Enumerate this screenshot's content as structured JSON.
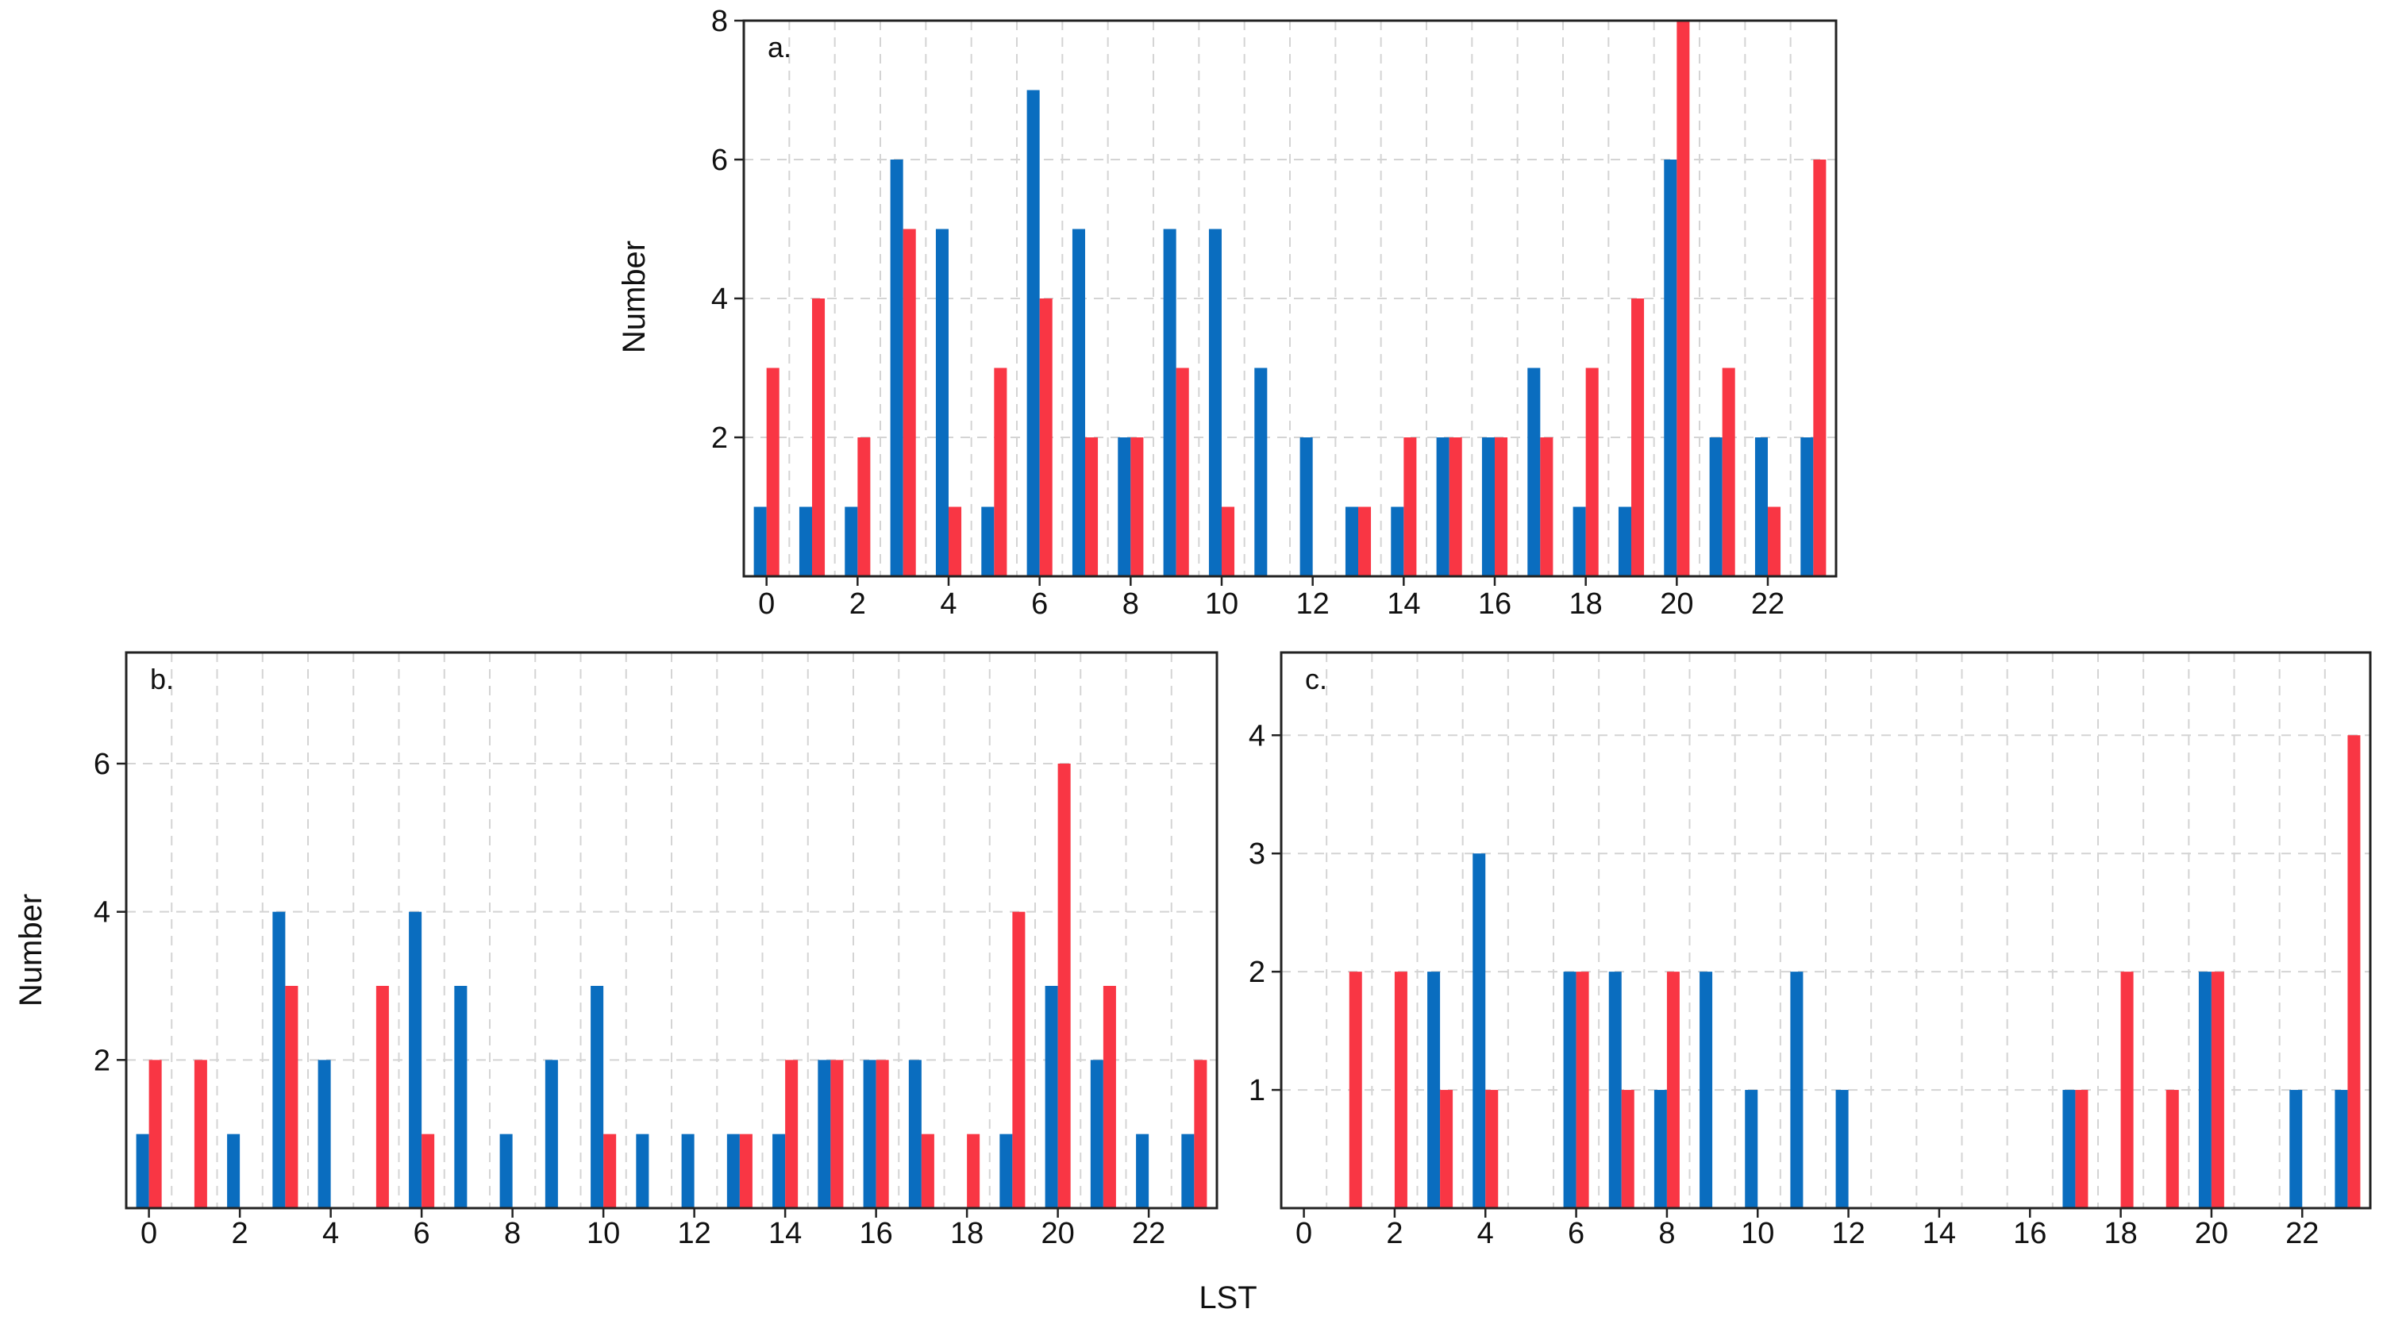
{
  "figure": {
    "shared_xlabel": "LST",
    "series_colors": {
      "blue": "#0a6dbf",
      "red": "#f93644"
    }
  },
  "chart_data": [
    {
      "type": "bar",
      "panel": "a.",
      "xlabel": "",
      "ylabel": "Number",
      "x": [
        0,
        1,
        2,
        3,
        4,
        5,
        6,
        7,
        8,
        9,
        10,
        11,
        12,
        13,
        14,
        15,
        16,
        17,
        18,
        19,
        20,
        21,
        22,
        23
      ],
      "x_ticks": [
        0,
        2,
        4,
        6,
        8,
        10,
        12,
        14,
        16,
        18,
        20,
        22
      ],
      "y_ticks": [
        2,
        4,
        6,
        8
      ],
      "ylim": [
        0,
        8
      ],
      "grid": true,
      "series": [
        {
          "name": "blue",
          "values": [
            1,
            1,
            1,
            6,
            5,
            1,
            7,
            5,
            2,
            5,
            5,
            3,
            2,
            1,
            1,
            2,
            2,
            3,
            1,
            1,
            6,
            2,
            2,
            2
          ]
        },
        {
          "name": "red",
          "values": [
            3,
            4,
            2,
            5,
            1,
            3,
            4,
            2,
            2,
            3,
            1,
            0,
            0,
            1,
            2,
            2,
            2,
            2,
            3,
            4,
            8,
            3,
            1,
            6
          ]
        }
      ]
    },
    {
      "type": "bar",
      "panel": "b.",
      "xlabel": "LST",
      "ylabel": "Number",
      "x": [
        0,
        1,
        2,
        3,
        4,
        5,
        6,
        7,
        8,
        9,
        10,
        11,
        12,
        13,
        14,
        15,
        16,
        17,
        18,
        19,
        20,
        21,
        22,
        23
      ],
      "x_ticks": [
        0,
        2,
        4,
        6,
        8,
        10,
        12,
        14,
        16,
        18,
        20,
        22
      ],
      "y_ticks": [
        2,
        4,
        6
      ],
      "ylim": [
        0,
        7.5
      ],
      "grid": true,
      "series": [
        {
          "name": "blue",
          "values": [
            1,
            0,
            1,
            4,
            2,
            0,
            4,
            3,
            1,
            2,
            3,
            1,
            1,
            1,
            1,
            2,
            2,
            2,
            0,
            1,
            3,
            2,
            1,
            1
          ]
        },
        {
          "name": "red",
          "values": [
            2,
            2,
            0,
            3,
            0,
            3,
            1,
            0,
            0,
            0,
            1,
            0,
            0,
            1,
            2,
            2,
            2,
            1,
            1,
            4,
            6,
            3,
            0,
            2
          ]
        }
      ]
    },
    {
      "type": "bar",
      "panel": "c.",
      "xlabel": "LST",
      "ylabel": "",
      "x": [
        0,
        1,
        2,
        3,
        4,
        5,
        6,
        7,
        8,
        9,
        10,
        11,
        12,
        13,
        14,
        15,
        16,
        17,
        18,
        19,
        20,
        21,
        22,
        23
      ],
      "x_ticks": [
        0,
        2,
        4,
        6,
        8,
        10,
        12,
        14,
        16,
        18,
        20,
        22
      ],
      "y_ticks": [
        1,
        2,
        3,
        4
      ],
      "ylim": [
        0,
        4.7
      ],
      "grid": true,
      "series": [
        {
          "name": "blue",
          "values": [
            0,
            0,
            0,
            2,
            3,
            0,
            2,
            2,
            1,
            2,
            1,
            2,
            1,
            0,
            0,
            0,
            0,
            1,
            0,
            0,
            2,
            0,
            1,
            1
          ]
        },
        {
          "name": "red",
          "values": [
            0,
            2,
            2,
            1,
            1,
            0,
            2,
            1,
            2,
            0,
            0,
            0,
            0,
            0,
            0,
            0,
            0,
            1,
            2,
            1,
            2,
            0,
            0,
            4
          ]
        }
      ]
    }
  ]
}
